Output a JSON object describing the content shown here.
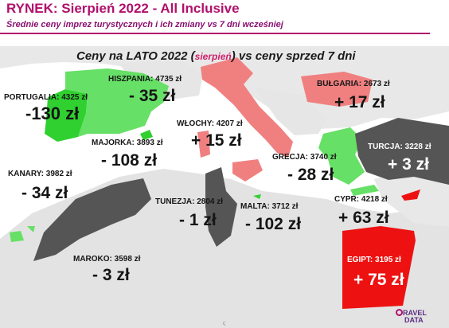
{
  "header": {
    "title": "RYNEK: Sierpień 2022 - All Inclusive",
    "subtitle": "Średnie ceny imprez turystycznych i ich zmiany vs 7 dni wcześniej"
  },
  "map": {
    "title_main": "Ceny na LATO 2022 (",
    "title_highlight": "sierpień",
    "title_end": ") vs ceny sprzed 7 dni"
  },
  "colors": {
    "increase": "#f08080",
    "decrease": "#66e066",
    "no_change_or_small": "#555555",
    "egypt": "#ee1111",
    "sea": "#ffffff",
    "land": "#e6e6e6"
  },
  "destinations": [
    {
      "id": "portugalia",
      "label": "PORTUGALIA: 4325 zł",
      "change": "-130 zł"
    },
    {
      "id": "hiszpania",
      "label": "HISZPANIA: 4735 zł",
      "change": "- 35 zł"
    },
    {
      "id": "majorka",
      "label": "MAJORKA: 3893 zł",
      "change": "- 108 zł"
    },
    {
      "id": "kanary",
      "label": "KANARY: 3982 zł",
      "change": "- 34 zł"
    },
    {
      "id": "maroko",
      "label": "MAROKO: 3598 zł",
      "change": "- 3 zł"
    },
    {
      "id": "tunezja",
      "label": "TUNEZJA: 2804 zł",
      "change": "- 1 zł"
    },
    {
      "id": "wlochy",
      "label": "WŁOCHY: 4207 zł",
      "change": "+ 15 zł"
    },
    {
      "id": "malta",
      "label": "MALTA: 3712 zł",
      "change": "- 102 zł"
    },
    {
      "id": "grecja",
      "label": "GRECJA: 3740 zł",
      "change": "- 28 zł"
    },
    {
      "id": "bulgaria",
      "label": "BUŁGARIA: 2673 zł",
      "change": "+ 17 zł"
    },
    {
      "id": "turcja",
      "label": "TURCJA: 3228 zł",
      "change": "+ 3 zł"
    },
    {
      "id": "cypr",
      "label": "CYPR: 4218 zł",
      "change": "+ 63 zł"
    },
    {
      "id": "egipt",
      "label": "EGIPT: 3195 zł",
      "change": "+ 75 zł"
    }
  ],
  "logo": {
    "line1": "RAVEL",
    "line2": "DATA"
  },
  "footer_glyph": "ς"
}
